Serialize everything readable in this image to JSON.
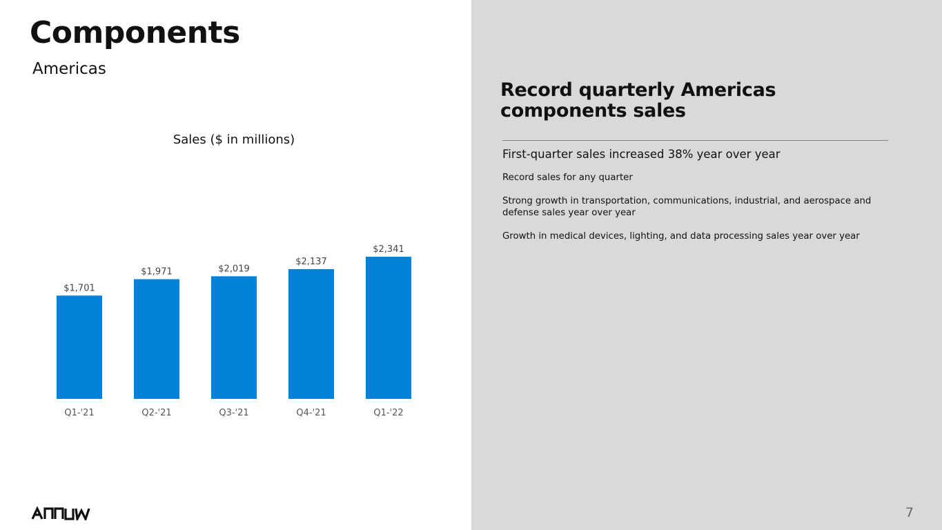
{
  "slide": {
    "title": "Components",
    "subtitle": "Americas",
    "page_number": "7",
    "logo_text": "ARROW"
  },
  "panel": {
    "headline": "Record quarterly Americas components sales",
    "bullets": [
      "First-quarter sales increased 38% year over year",
      "Record sales for any quarter",
      "Strong growth in transportation, communications, industrial, and aerospace and defense sales year over year",
      "Growth in medical devices, lighting, and data processing sales year over year"
    ]
  },
  "chart_data": {
    "type": "bar",
    "title": "Sales ($ in millions)",
    "categories": [
      "Q1-'21",
      "Q2-'21",
      "Q3-'21",
      "Q4-'21",
      "Q1-'22"
    ],
    "values": [
      1701,
      1971,
      2019,
      2137,
      2341
    ],
    "value_labels": [
      "$1,701",
      "$1,971",
      "$2,019",
      "$2,137",
      "$2,341"
    ],
    "ylim": [
      0,
      2341
    ],
    "grid": false,
    "bar_color": "#0083d9"
  },
  "colors": {
    "panel_background": "#d9d9d9",
    "text": "#111111",
    "bar": "#0083d9"
  }
}
